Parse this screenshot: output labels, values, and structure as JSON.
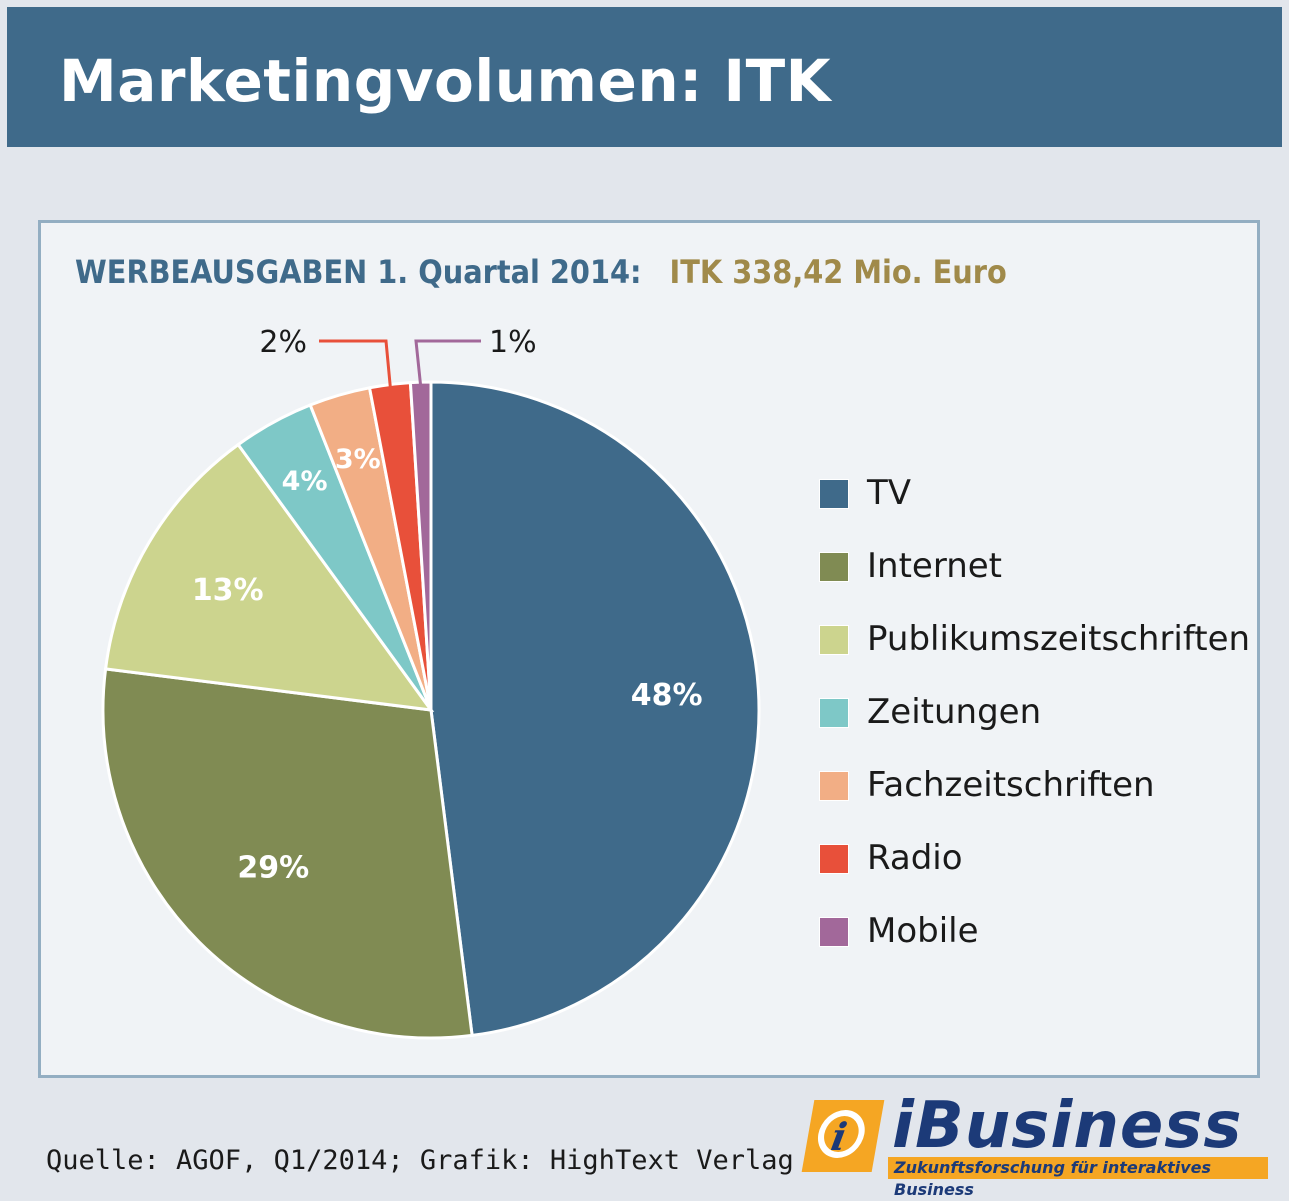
{
  "header": {
    "title": "Marketingvolumen: ITK"
  },
  "subtitle": {
    "part1": "WERBEAUSGABEN 1. Quartal 2014:",
    "part2": "ITK 338,42 Mio. Euro"
  },
  "chart_data": {
    "type": "pie",
    "title": "Marketingvolumen: ITK",
    "subtitle": "WERBEAUSGABEN 1. Quartal 2014: ITK 338,42 Mio. Euro",
    "categories": [
      "TV",
      "Internet",
      "Publikumszeitschriften",
      "Zeitungen",
      "Fachzeitschriften",
      "Radio",
      "Mobile"
    ],
    "values": [
      48,
      29,
      13,
      4,
      3,
      2,
      1
    ],
    "labels": [
      "48%",
      "29%",
      "13%",
      "4%",
      "3%",
      "2%",
      "1%"
    ],
    "colors": [
      "#3f6a8a",
      "#808b53",
      "#ccd48e",
      "#7ec8c7",
      "#f2ae85",
      "#e8503a",
      "#a2689a"
    ],
    "legend_position": "right"
  },
  "source": "Quelle: AGOF, Q1/2014; Grafik: HighText Verlag",
  "logo": {
    "wordmark": "iBusiness",
    "tagline": "Zukunftsforschung für interaktives Business",
    "mark": "i"
  }
}
